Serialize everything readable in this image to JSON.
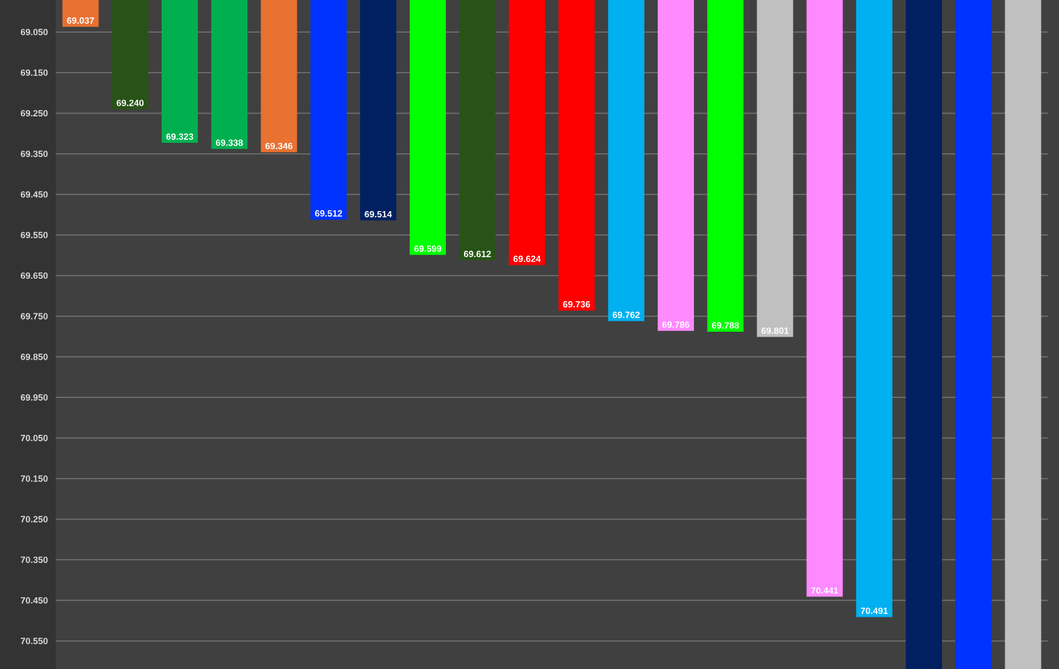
{
  "chart_data": {
    "type": "bar",
    "categories": [
      null,
      null,
      null,
      null,
      null,
      null,
      null,
      null,
      null,
      null,
      null,
      null,
      null,
      null,
      null,
      null,
      null,
      null,
      null,
      null
    ],
    "values": [
      69.037,
      69.24,
      69.323,
      69.338,
      69.346,
      69.512,
      69.514,
      69.599,
      69.612,
      69.624,
      69.736,
      69.762,
      69.786,
      69.788,
      69.801,
      70.441,
      70.491,
      70.619,
      70.619,
      70.619
    ],
    "value_labels": [
      "69.037",
      "69.240",
      "69.323",
      "69.338",
      "69.346",
      "69.512",
      "69.514",
      "69.599",
      "69.612",
      "69.624",
      "69.736",
      "69.762",
      "69.786",
      "69.788",
      "69.801",
      "70.441",
      "70.491",
      null,
      null,
      null
    ],
    "colors": [
      "#e97132",
      "#275317",
      "#00b050",
      "#00b050",
      "#e97132",
      "#0033ff",
      "#002060",
      "#00ff00",
      "#275317",
      "#ff0000",
      "#ff0000",
      "#00b0f0",
      "#ff89ff",
      "#00ff00",
      "#c0c0c0",
      "#ff89ff",
      "#00b0f0",
      "#002060",
      "#0033ff",
      "#c0c0c0"
    ],
    "ylim": [
      70.619,
      68.971
    ],
    "yticks": [
      {
        "value": 69.05,
        "label": "69.050"
      },
      {
        "value": 69.15,
        "label": "69.150"
      },
      {
        "value": 69.25,
        "label": "69.250"
      },
      {
        "value": 69.35,
        "label": "69.350"
      },
      {
        "value": 69.45,
        "label": "69.450"
      },
      {
        "value": 69.55,
        "label": "69.550"
      },
      {
        "value": 69.65,
        "label": "69.650"
      },
      {
        "value": 69.75,
        "label": "69.750"
      },
      {
        "value": 69.85,
        "label": "69.850"
      },
      {
        "value": 69.95,
        "label": "69.950"
      },
      {
        "value": 70.05,
        "label": "70.050"
      },
      {
        "value": 70.15,
        "label": "70.150"
      },
      {
        "value": 70.25,
        "label": "70.250"
      },
      {
        "value": 70.35,
        "label": "70.350"
      },
      {
        "value": 70.45,
        "label": "70.450"
      },
      {
        "value": 70.55,
        "label": "70.550"
      }
    ],
    "grid": "y"
  }
}
